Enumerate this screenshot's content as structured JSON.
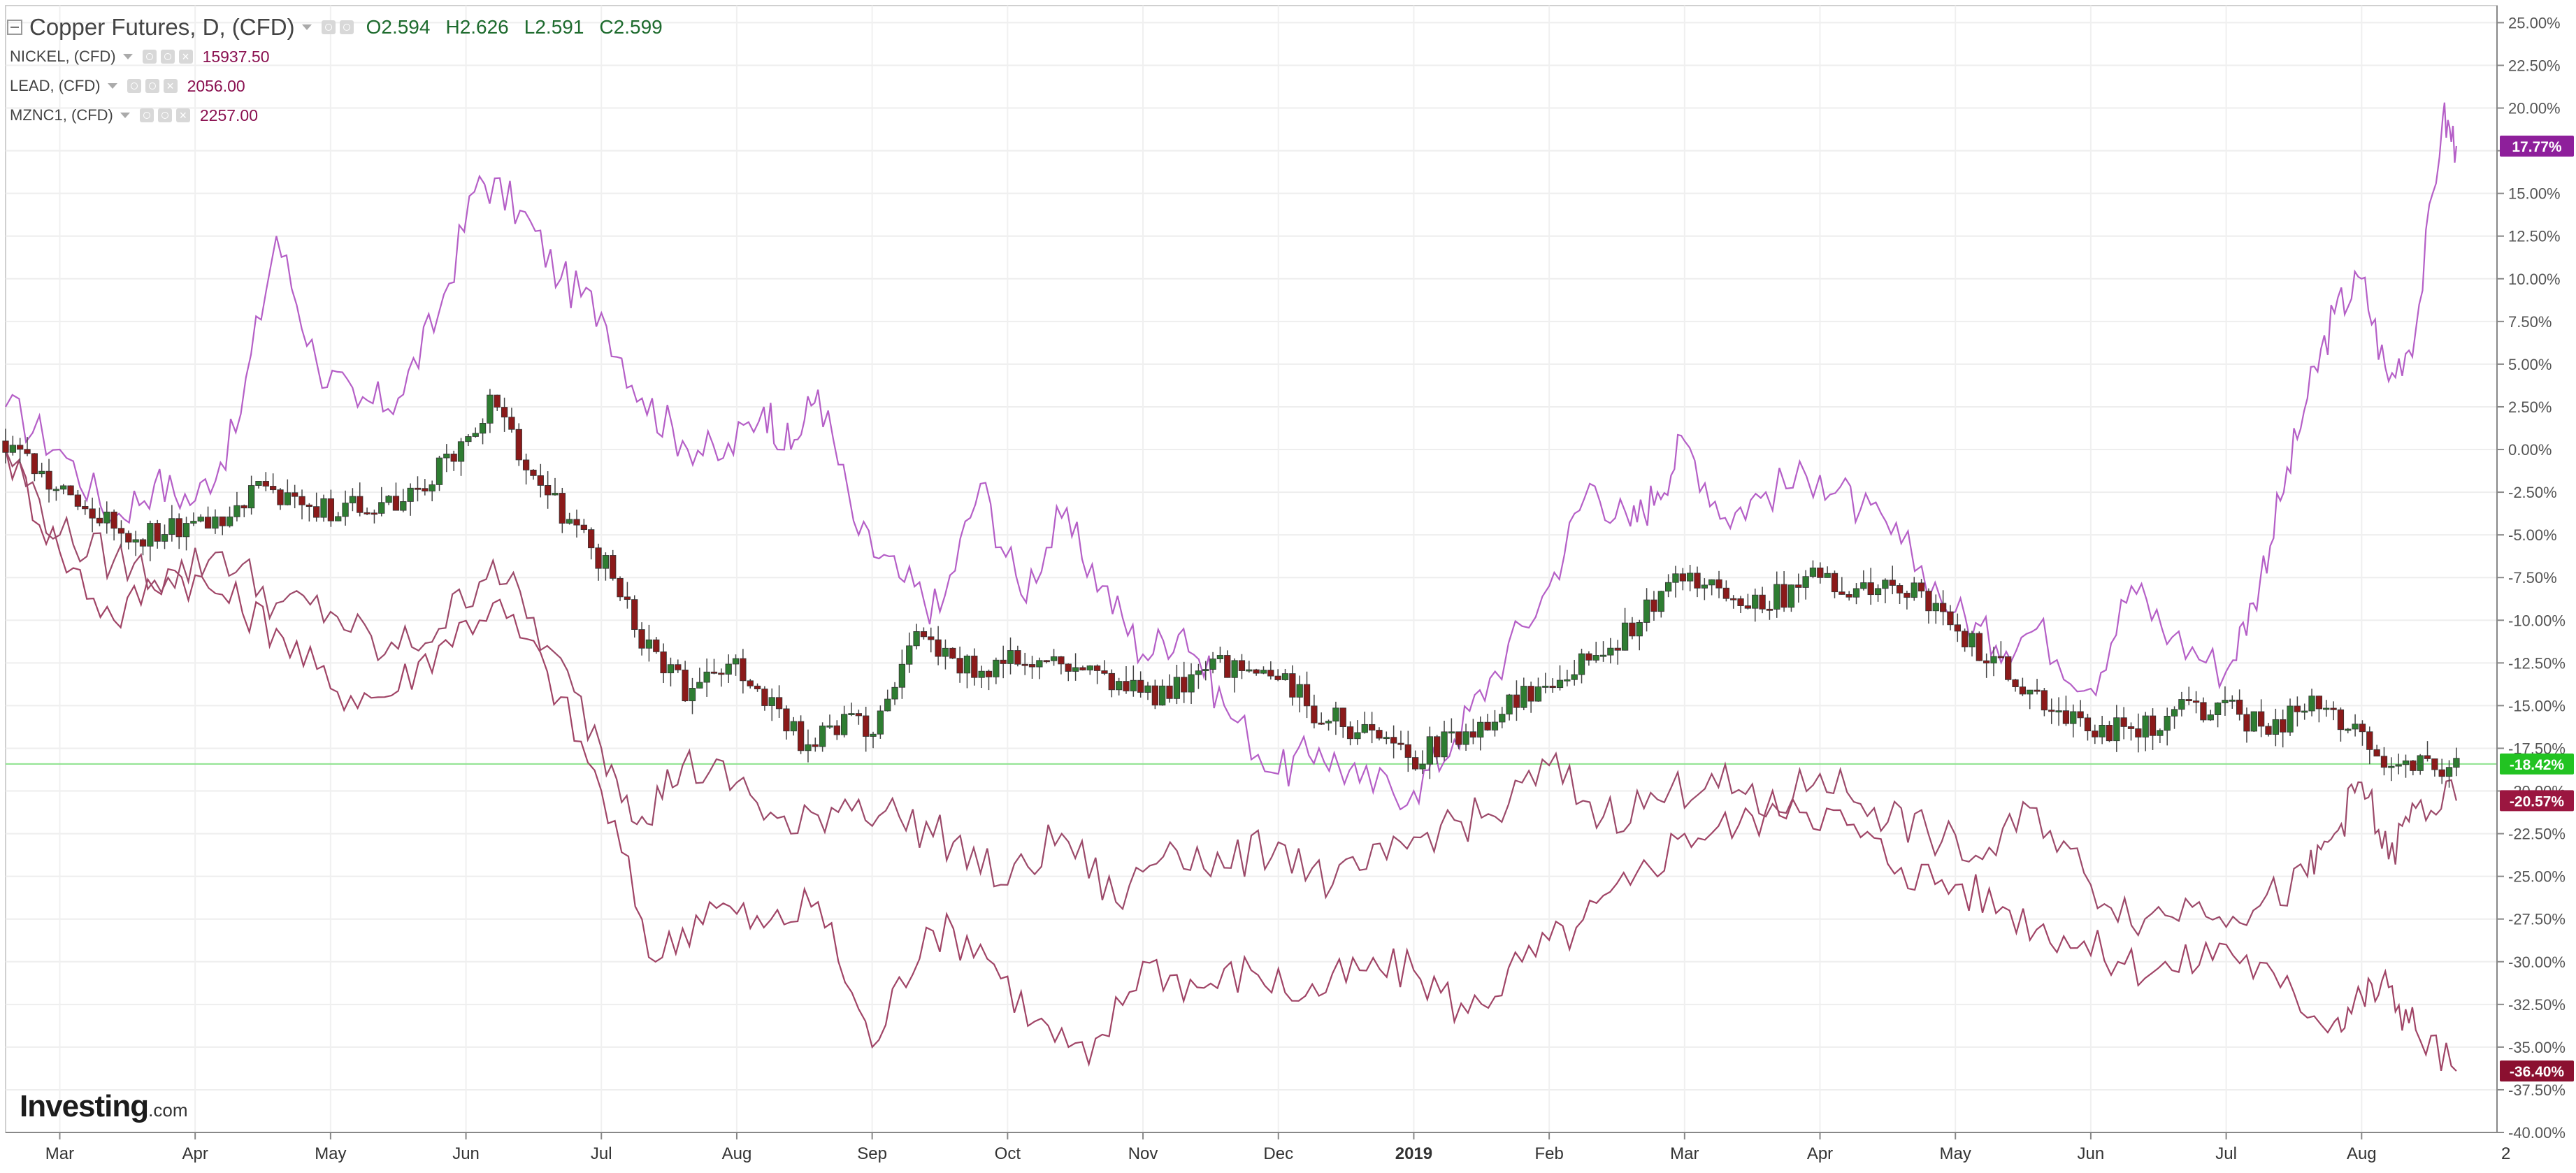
{
  "header": {
    "title": "Copper Futures, D, (CFD)",
    "ohlc": [
      {
        "k": "O",
        "v": "2.594"
      },
      {
        "k": "H",
        "v": "2.626"
      },
      {
        "k": "L",
        "v": "2.591"
      },
      {
        "k": "C",
        "v": "2.599"
      }
    ]
  },
  "compare_symbols": [
    {
      "label": "NICKEL, (CFD)",
      "value": "15937.50"
    },
    {
      "label": "LEAD, (CFD)",
      "value": "2056.00"
    },
    {
      "label": "MZNC1, (CFD)",
      "value": "2257.00"
    }
  ],
  "branding": {
    "logo": "Investing",
    "logo_suffix": ".com"
  },
  "colors": {
    "up_candle": "#2e7d32",
    "down_candle": "#8b1a1a",
    "nickel_line": "#b55fc7",
    "lead_line": "#a04466",
    "zinc_line": "#9c4a6a",
    "price_line": "#8ee28e",
    "badge_nickel": "#8e1f9b",
    "badge_copper": "#22c322",
    "badge_zinc": "#9b1640",
    "badge_lead": "#8b1030"
  },
  "chart_data": {
    "type": "line",
    "title": "Copper Futures, D, (CFD)",
    "xlabel": "",
    "ylabel": "",
    "ylim": [
      -40,
      26
    ],
    "y_scale": "percent change",
    "grid": true,
    "legend_placement": "top-left",
    "x_tick_labels": [
      "Mar",
      "Apr",
      "May",
      "Jun",
      "Jul",
      "Aug",
      "Sep",
      "Oct",
      "Nov",
      "Dec",
      "2019",
      "Feb",
      "Mar",
      "Apr",
      "May",
      "Jun",
      "Jul",
      "Aug"
    ],
    "x_tick_pos": [
      1.0,
      2.0,
      3.0,
      4.0,
      5.0,
      6.0,
      7.0,
      8.0,
      9.0,
      10.0,
      11.0,
      12.0,
      13.0,
      14.0,
      15.0,
      16.0,
      17.0,
      18.0
    ],
    "x_axis_trailing_label": "2",
    "y_tick_labels": [
      "25.00%",
      "22.50%",
      "20.00%",
      "17.50%",
      "15.00%",
      "12.50%",
      "10.00%",
      "7.50%",
      "5.00%",
      "2.50%",
      "0.00%",
      "-2.50%",
      "-5.00%",
      "-7.50%",
      "-10.00%",
      "-12.50%",
      "-15.00%",
      "-17.50%",
      "-20.00%",
      "-22.50%",
      "-25.00%",
      "-27.50%",
      "-30.00%",
      "-32.50%",
      "-35.00%",
      "-37.50%",
      "-40.00%"
    ],
    "y_tick_values": [
      25,
      22.5,
      20,
      17.5,
      15,
      12.5,
      10,
      7.5,
      5,
      2.5,
      0,
      -2.5,
      -5,
      -7.5,
      -10,
      -12.5,
      -15,
      -17.5,
      -20,
      -22.5,
      -25,
      -27.5,
      -30,
      -32.5,
      -35,
      -37.5,
      -40
    ],
    "current_price_line": -18.42,
    "badges": [
      {
        "label": "17.77%",
        "value": 17.77,
        "color": "#8e1f9b"
      },
      {
        "label": "-18.42%",
        "value": -18.42,
        "color": "#22c322"
      },
      {
        "label": "-20.57%",
        "value": -20.57,
        "color": "#9b1640"
      },
      {
        "label": "-36.40%",
        "value": -36.4,
        "color": "#8b1030"
      }
    ],
    "candles_series": {
      "name": "Copper Futures, D, (CFD)",
      "x": [
        0.6,
        1.0,
        1.5,
        2.0,
        2.5,
        3.0,
        3.5,
        4.0,
        4.2,
        4.5,
        4.8,
        5.0,
        5.3,
        5.6,
        6.0,
        6.3,
        6.5,
        6.8,
        7.0,
        7.3,
        7.6,
        7.8,
        8.0,
        8.5,
        9.0,
        9.3,
        9.6,
        10.0,
        10.3,
        10.6,
        11.0,
        11.3,
        11.6,
        12.0,
        12.3,
        12.6,
        13.0,
        13.3,
        13.6,
        14.0,
        14.3,
        14.6,
        15.0,
        15.3,
        15.6,
        16.0,
        16.3,
        16.6,
        17.0,
        17.3,
        17.6,
        17.8,
        18.0,
        18.2,
        18.5,
        18.7
      ],
      "values": [
        0.5,
        -2.5,
        -5.0,
        -4.5,
        -2.5,
        -3.5,
        -3.5,
        0.5,
        3.0,
        -2.0,
        -4.5,
        -6.5,
        -11.0,
        -14.0,
        -13.0,
        -15.0,
        -17.5,
        -16.0,
        -16.5,
        -11.0,
        -12.5,
        -13.0,
        -12.5,
        -13.0,
        -14.5,
        -14.0,
        -12.5,
        -13.5,
        -15.5,
        -16.5,
        -18.0,
        -17.0,
        -15.5,
        -13.5,
        -12.0,
        -10.5,
        -7.5,
        -8.5,
        -9.0,
        -7.5,
        -8.5,
        -8.0,
        -10.5,
        -12.5,
        -14.5,
        -16.5,
        -16.5,
        -15.5,
        -15.0,
        -16.5,
        -15.0,
        -15.5,
        -16.0,
        -19.0,
        -18.5,
        -18.42
      ]
    },
    "series": [
      {
        "name": "NICKEL, (CFD)",
        "x": [
          0.6,
          1.0,
          1.4,
          1.7,
          2.0,
          2.3,
          2.6,
          2.9,
          3.2,
          3.5,
          3.8,
          4.1,
          4.4,
          4.7,
          5.0,
          5.3,
          5.6,
          5.9,
          6.2,
          6.4,
          6.6,
          6.9,
          7.2,
          7.5,
          7.8,
          8.1,
          8.4,
          8.7,
          9.0,
          9.3,
          9.6,
          10.0,
          10.3,
          10.6,
          11.0,
          11.3,
          11.6,
          12.0,
          12.3,
          12.6,
          12.8,
          13.0,
          13.3,
          13.6,
          14.0,
          14.3,
          14.6,
          15.0,
          15.3,
          15.6,
          16.0,
          16.3,
          16.6,
          17.0,
          17.2,
          17.4,
          17.6,
          17.8,
          18.0,
          18.2,
          18.4,
          18.6,
          18.7
        ],
        "values": [
          2.5,
          0.0,
          -4.0,
          -2.0,
          -3.0,
          1.0,
          12.5,
          5.0,
          2.5,
          3.0,
          8.0,
          16.0,
          14.0,
          10.0,
          8.0,
          3.0,
          0.5,
          -0.5,
          2.5,
          0.0,
          3.5,
          -5.0,
          -7.5,
          -9.5,
          -2.0,
          -8.5,
          -4.0,
          -8.0,
          -12.0,
          -10.5,
          -15.0,
          -19.0,
          -17.5,
          -19.5,
          -20.0,
          -17.0,
          -13.0,
          -8.0,
          -2.0,
          -4.5,
          -2.5,
          0.5,
          -4.0,
          -2.5,
          -1.5,
          -3.5,
          -5.5,
          -9.5,
          -11.5,
          -10.5,
          -14.0,
          -8.0,
          -11.0,
          -13.0,
          -9.0,
          -3.0,
          3.0,
          8.0,
          10.0,
          4.0,
          7.0,
          19.5,
          17.77
        ]
      },
      {
        "name": "LEAD, (CFD)",
        "x": [
          0.6,
          1.0,
          1.4,
          1.8,
          2.2,
          2.6,
          3.0,
          3.4,
          3.8,
          4.2,
          4.6,
          5.0,
          5.4,
          5.8,
          6.2,
          6.6,
          7.0,
          7.4,
          7.8,
          8.2,
          8.6,
          9.0,
          9.4,
          9.8,
          10.2,
          10.6,
          11.0,
          11.4,
          11.8,
          12.2,
          12.6,
          13.0,
          13.4,
          13.8,
          14.2,
          14.6,
          15.0,
          15.4,
          15.8,
          16.2,
          16.6,
          17.0,
          17.4,
          17.8,
          18.0,
          18.2,
          18.4,
          18.7
        ],
        "values": [
          0.0,
          -6.0,
          -10.0,
          -7.0,
          -8.5,
          -10.5,
          -14.0,
          -14.5,
          -11.5,
          -9.0,
          -13.0,
          -20.0,
          -30.0,
          -26.5,
          -28.0,
          -26.5,
          -35.0,
          -28.0,
          -29.0,
          -33.5,
          -36.0,
          -30.0,
          -31.5,
          -30.5,
          -32.0,
          -30.5,
          -30.5,
          -33.0,
          -30.0,
          -28.0,
          -25.5,
          -22.5,
          -22.0,
          -20.5,
          -22.0,
          -24.5,
          -25.5,
          -27.0,
          -28.5,
          -30.0,
          -30.5,
          -29.0,
          -31.5,
          -33.5,
          -32.0,
          -31.5,
          -34.0,
          -36.4
        ]
      },
      {
        "name": "MZNC1, (CFD)",
        "x": [
          0.6,
          1.0,
          1.4,
          1.8,
          2.2,
          2.6,
          3.0,
          3.4,
          3.8,
          4.2,
          4.6,
          5.0,
          5.3,
          5.6,
          6.0,
          6.4,
          6.8,
          7.2,
          7.6,
          8.0,
          8.4,
          8.8,
          9.2,
          9.6,
          10.0,
          10.4,
          10.8,
          11.2,
          11.6,
          12.0,
          12.4,
          12.8,
          13.2,
          13.6,
          14.0,
          14.4,
          14.8,
          15.2,
          15.6,
          16.0,
          16.4,
          16.8,
          17.2,
          17.6,
          17.8,
          18.0,
          18.2,
          18.4,
          18.7
        ],
        "values": [
          0.0,
          -5.0,
          -6.5,
          -7.5,
          -6.0,
          -9.0,
          -9.5,
          -12.0,
          -10.5,
          -6.5,
          -11.5,
          -17.5,
          -21.5,
          -18.5,
          -19.5,
          -22.5,
          -20.5,
          -21.5,
          -23.0,
          -25.5,
          -22.5,
          -26.5,
          -23.0,
          -24.5,
          -23.0,
          -25.5,
          -24.0,
          -22.0,
          -21.5,
          -18.5,
          -21.5,
          -20.5,
          -19.0,
          -21.5,
          -19.0,
          -21.0,
          -22.5,
          -24.0,
          -21.0,
          -25.5,
          -27.5,
          -26.5,
          -27.0,
          -25.0,
          -22.5,
          -19.5,
          -24.0,
          -21.0,
          -20.57
        ]
      }
    ]
  }
}
